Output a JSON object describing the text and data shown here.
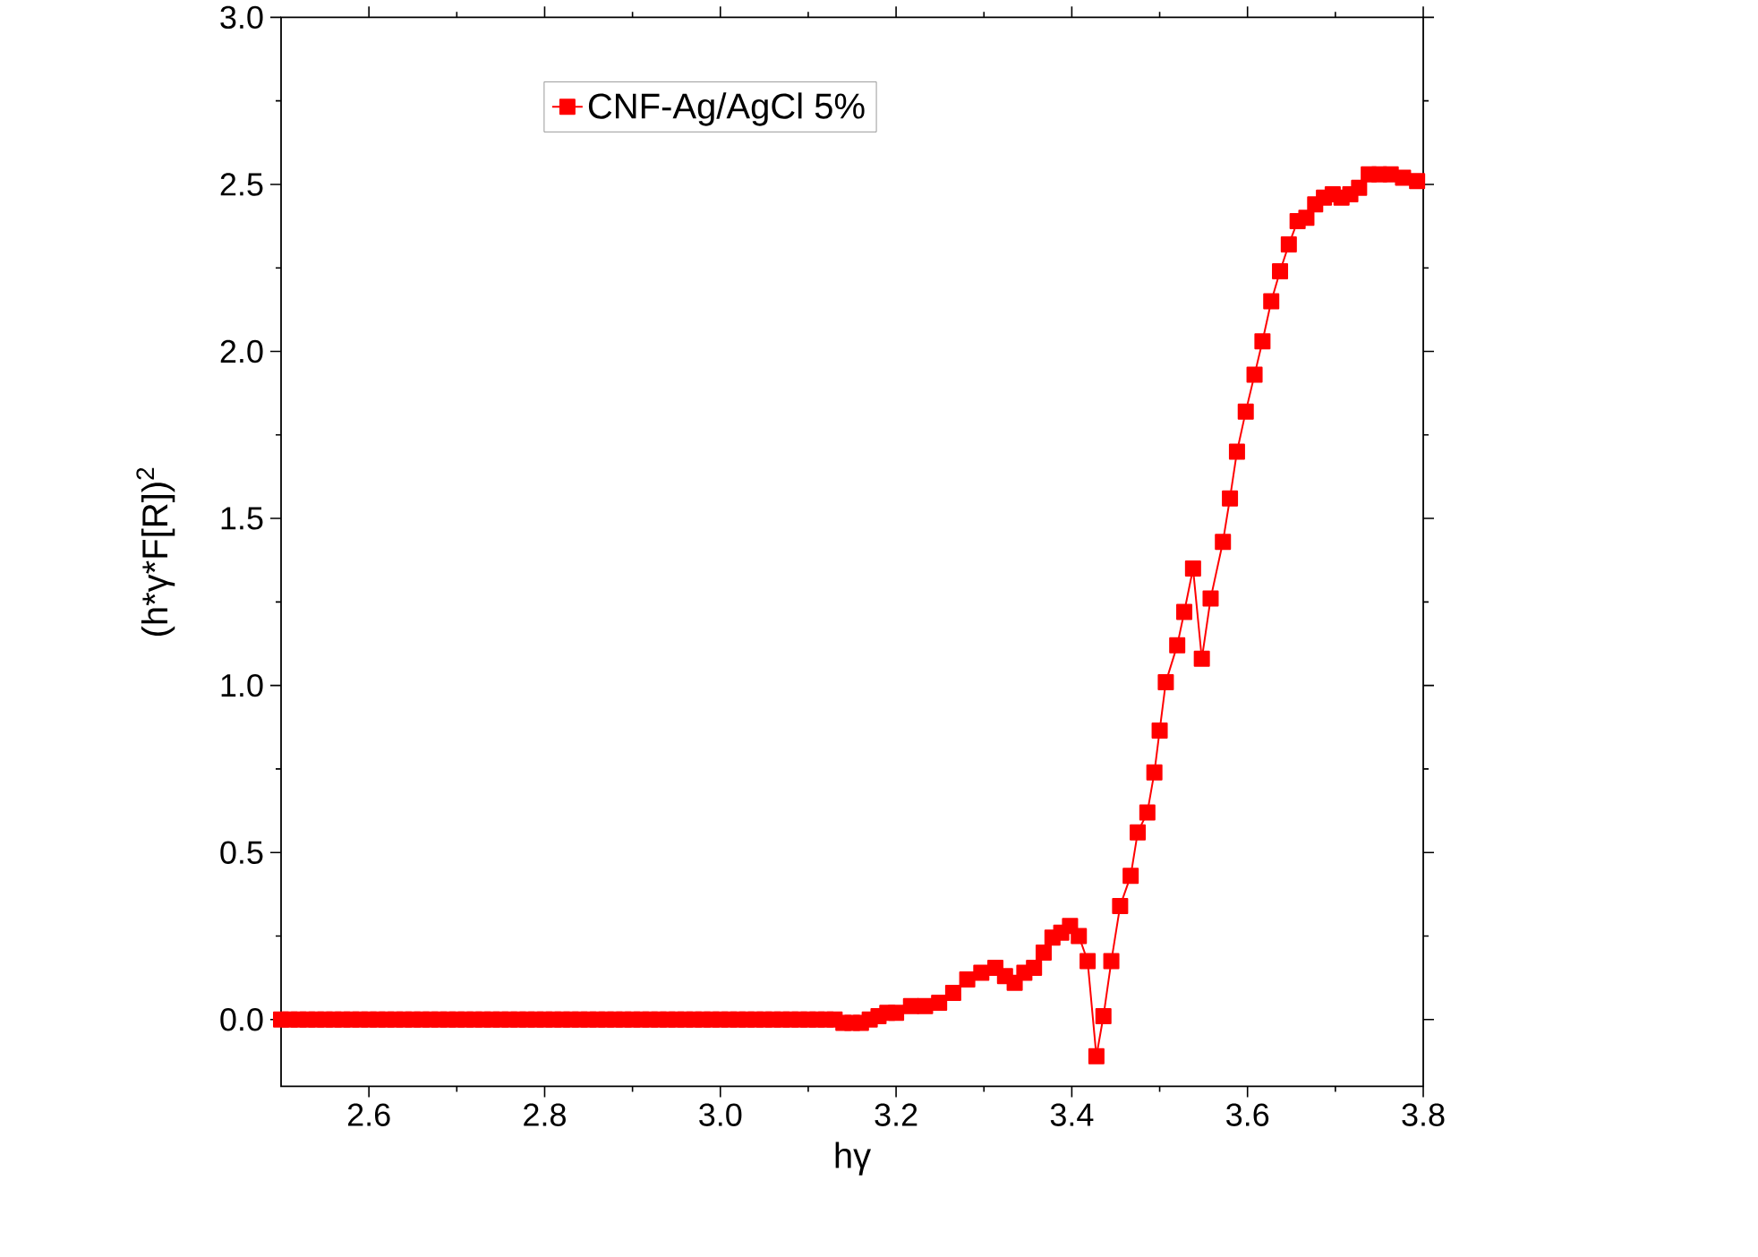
{
  "chart_data": {
    "type": "line",
    "xlabel": "hγ",
    "ylabel": "(h*γ*F[R])$^{2}$",
    "x": [
      2.5,
      2.51,
      2.52,
      2.53,
      2.54,
      2.55,
      2.56,
      2.57,
      2.58,
      2.59,
      2.6,
      2.61,
      2.62,
      2.63,
      2.64,
      2.65,
      2.66,
      2.67,
      2.68,
      2.69,
      2.7,
      2.71,
      2.72,
      2.73,
      2.74,
      2.75,
      2.76,
      2.77,
      2.78,
      2.79,
      2.8,
      2.81,
      2.82,
      2.83,
      2.84,
      2.85,
      2.86,
      2.87,
      2.88,
      2.89,
      2.9,
      2.91,
      2.92,
      2.93,
      2.94,
      2.95,
      2.96,
      2.97,
      2.98,
      2.99,
      3.0,
      3.01,
      3.02,
      3.03,
      3.04,
      3.05,
      3.06,
      3.07,
      3.08,
      3.09,
      3.1,
      3.11,
      3.12,
      3.13,
      3.14,
      3.15,
      3.16,
      3.17,
      3.18,
      3.19,
      3.2,
      3.217,
      3.233,
      3.249,
      3.265,
      3.281,
      3.297,
      3.313,
      3.324,
      3.335,
      3.346,
      3.357,
      3.368,
      3.378,
      3.388,
      3.398,
      3.408,
      3.418,
      3.428,
      3.436,
      3.445,
      3.455,
      3.467,
      3.475,
      3.486,
      3.494,
      3.5,
      3.507,
      3.52,
      3.528,
      3.538,
      3.548,
      3.558,
      3.572,
      3.58,
      3.588,
      3.598,
      3.608,
      3.617,
      3.627,
      3.637,
      3.647,
      3.657,
      3.667,
      3.677,
      3.687,
      3.697,
      3.707,
      3.717,
      3.727,
      3.738,
      3.75,
      3.763,
      3.777,
      3.793
    ],
    "series": [
      {
        "name": "CNF-Ag/AgCl 5%",
        "color": "#ff0000",
        "values": [
          0,
          0,
          0,
          0,
          0,
          0,
          0,
          0,
          0,
          0,
          0,
          0,
          0,
          0,
          0,
          0,
          0,
          0,
          0,
          0,
          0,
          0,
          0,
          0,
          0,
          0,
          0,
          0,
          0,
          0,
          0,
          0,
          0,
          0,
          0,
          0,
          0,
          0,
          0,
          0,
          0,
          0,
          0,
          0,
          0,
          0,
          0,
          0,
          0,
          0,
          0,
          0,
          0,
          0,
          0,
          0,
          0,
          0,
          0,
          0,
          0,
          0,
          0,
          0,
          -0.01,
          -0.01,
          -0.01,
          0,
          0.01,
          0.02,
          0.02,
          0.04,
          0.04,
          0.05,
          0.08,
          0.12,
          0.14,
          0.155,
          0.13,
          0.11,
          0.14,
          0.155,
          0.2,
          0.245,
          0.26,
          0.28,
          0.25,
          0.175,
          -0.11,
          0.01,
          0.175,
          0.34,
          0.43,
          0.56,
          0.62,
          0.74,
          0.865,
          1.01,
          1.12,
          1.22,
          1.35,
          1.08,
          1.26,
          1.43,
          1.56,
          1.7,
          1.82,
          1.93,
          2.03,
          2.15,
          2.24,
          2.32,
          2.39,
          2.4,
          2.44,
          2.46,
          2.47,
          2.46,
          2.47,
          2.49,
          2.53,
          2.53,
          2.53,
          2.52,
          2.51
        ]
      }
    ],
    "xlim": [
      2.5,
      3.8
    ],
    "ylim": [
      -0.2,
      3.0
    ],
    "xticks": [
      {
        "value": 2.6,
        "label": "2.6"
      },
      {
        "value": 2.8,
        "label": "2.8"
      },
      {
        "value": 3.0,
        "label": "3.0"
      },
      {
        "value": 3.2,
        "label": "3.2"
      },
      {
        "value": 3.4,
        "label": "3.4"
      },
      {
        "value": 3.6,
        "label": "3.6"
      },
      {
        "value": 3.8,
        "label": "3.8"
      }
    ],
    "yticks": [
      {
        "value": 0,
        "label": "0.0"
      },
      {
        "value": 0.5,
        "label": "0.5"
      },
      {
        "value": 1.0,
        "label": "1.0"
      },
      {
        "value": 1.5,
        "label": "1.5"
      },
      {
        "value": 2.0,
        "label": "2.0"
      },
      {
        "value": 2.5,
        "label": "2.5"
      },
      {
        "value": 3.0,
        "label": "3.0"
      }
    ],
    "legend": "top left",
    "marker": "square",
    "line_style": "solid"
  }
}
